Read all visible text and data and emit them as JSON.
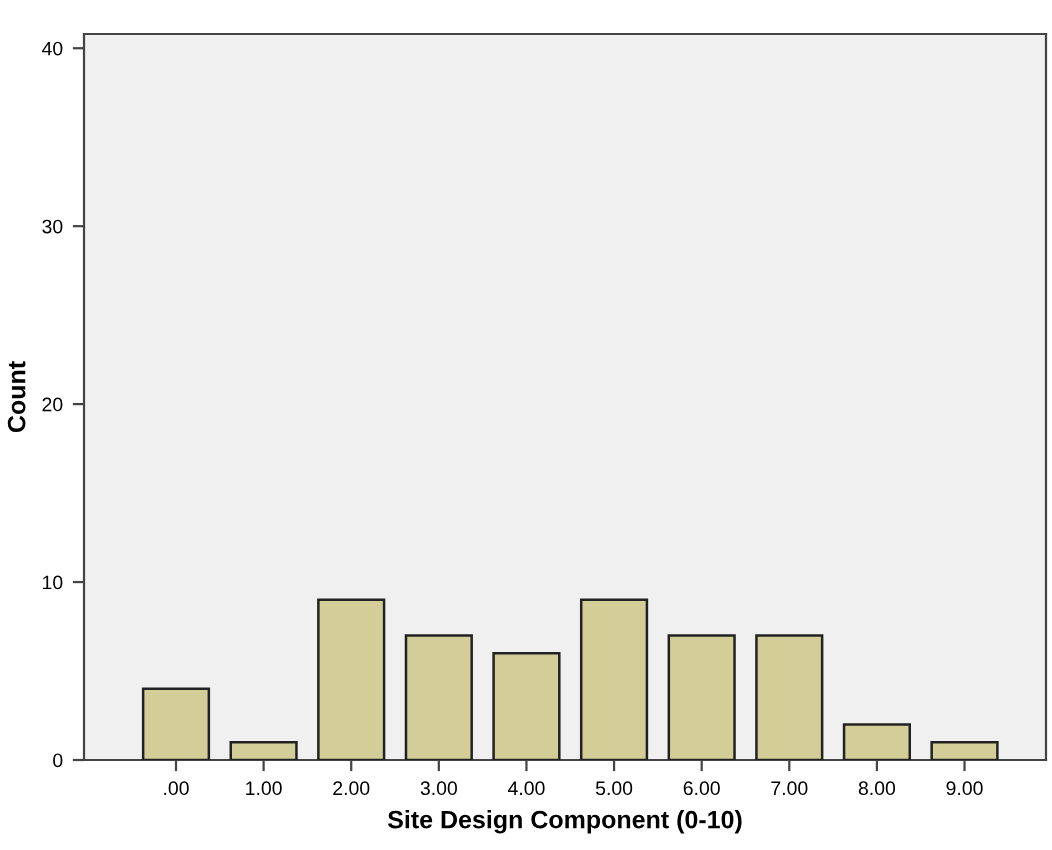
{
  "chart_data": {
    "type": "bar",
    "xlabel": "Site Design Component (0-10)",
    "ylabel": "Count",
    "categories": [
      ".00",
      "1.00",
      "2.00",
      "3.00",
      "4.00",
      "5.00",
      "6.00",
      "7.00",
      "8.00",
      "9.00"
    ],
    "values": [
      4,
      1,
      9,
      7,
      6,
      9,
      7,
      7,
      2,
      1
    ],
    "color": "#d3ce98",
    "ylim": [
      0,
      40.8
    ],
    "yticks": [
      0,
      10,
      20,
      30,
      40
    ],
    "grid": false
  }
}
